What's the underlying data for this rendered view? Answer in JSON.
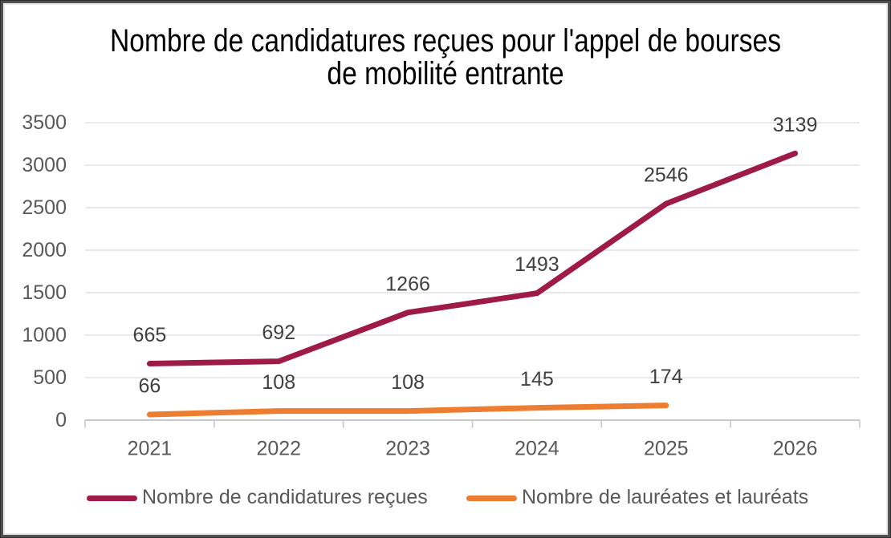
{
  "chart_data": {
    "type": "line",
    "title": "Nombre de candidatures reçues pour l'appel de bourses de mobilité entrante",
    "title_lines": [
      "Nombre de candidatures reçues pour l'appel de bourses",
      "de mobilité entrante"
    ],
    "categories": [
      "2021",
      "2022",
      "2023",
      "2024",
      "2025",
      "2026"
    ],
    "series": [
      {
        "name": "Nombre de candidatures reçues",
        "values": [
          665,
          692,
          1266,
          1493,
          2546,
          3139
        ],
        "color": "#9E1B47"
      },
      {
        "name": "Nombre de lauréates et lauréats",
        "values": [
          66,
          108,
          108,
          145,
          174
        ],
        "color": "#ED7D31"
      }
    ],
    "xlabel": "",
    "ylabel": "",
    "ylim": [
      0,
      3500
    ],
    "ytick_step": 500,
    "yticks": [
      0,
      500,
      1000,
      1500,
      2000,
      2500,
      3000,
      3500
    ],
    "grid": true,
    "legend_position": "bottom",
    "colors": {
      "title_text": "#000000",
      "axis_text": "#595959",
      "data_label_text": "#404040",
      "gridline": "#e2e2e2",
      "axis_line": "#c8c8c8",
      "frame_dark": "#515151",
      "frame_light": "#eaeaea",
      "background": "#ffffff"
    }
  }
}
